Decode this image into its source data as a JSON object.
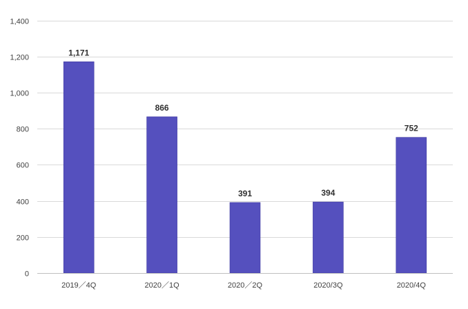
{
  "chart_data": {
    "type": "bar",
    "title": "",
    "xlabel": "",
    "ylabel": "",
    "categories": [
      "2019／4Q",
      "2020／1Q",
      "2020／2Q",
      "2020/3Q",
      "2020/4Q"
    ],
    "values": [
      1171,
      866,
      391,
      394,
      752
    ],
    "data_labels": [
      "1,171",
      "866",
      "391",
      "394",
      "752"
    ],
    "ylim": [
      0,
      1400
    ],
    "yticks": [
      0,
      200,
      400,
      600,
      800,
      1000,
      1200,
      1400
    ],
    "ytick_labels": [
      "0",
      "200",
      "400",
      "600",
      "800",
      "1,000",
      "1,200",
      "1,400"
    ],
    "grid": true,
    "legend": "none",
    "colors": {
      "bar": "#5550BE",
      "bar_edge": "#3F3AA0",
      "grid": "#D9D9D9",
      "axis": "#BFBFBF"
    }
  }
}
